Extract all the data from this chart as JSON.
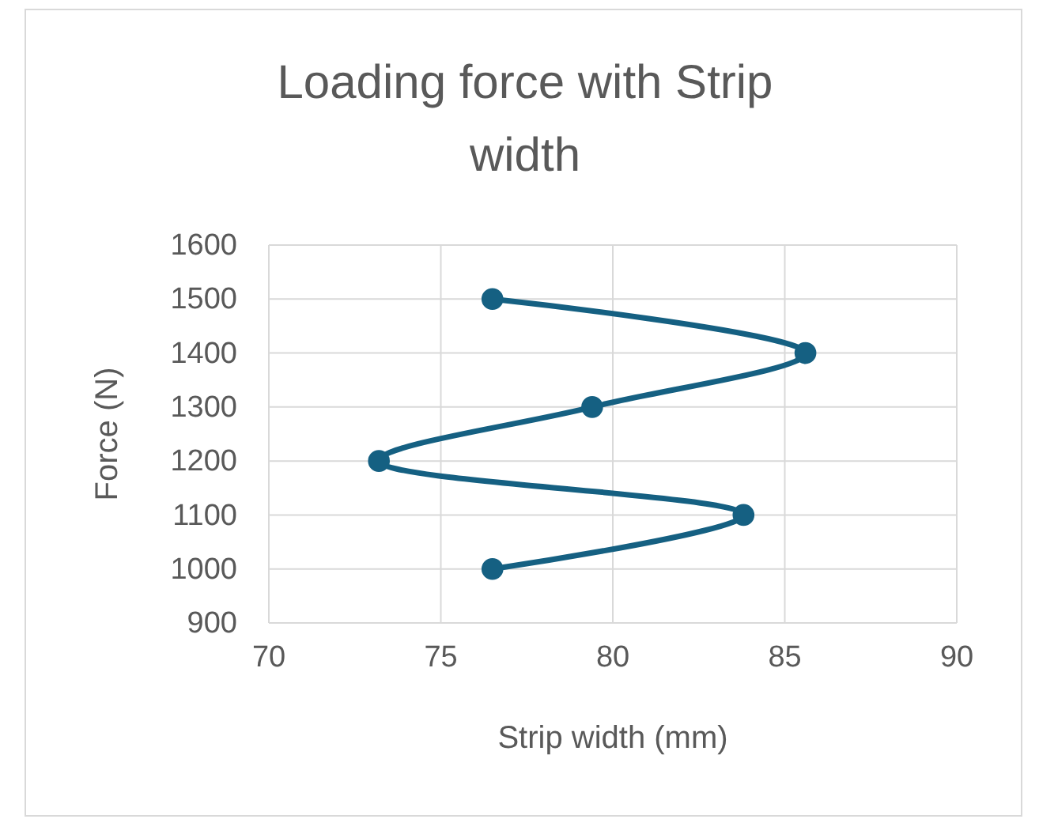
{
  "chart_data": {
    "type": "line",
    "title": "Loading force with Strip width",
    "xlabel": "Strip width (mm)",
    "ylabel": "Force (N)",
    "x": [
      76.5,
      83.8,
      73.2,
      79.4,
      85.6,
      76.5
    ],
    "series": [
      {
        "color": "#156082",
        "values": [
          1000,
          1100,
          1200,
          1300,
          1400,
          1500
        ]
      }
    ],
    "xlim": [
      70,
      90
    ],
    "xticks": [
      70,
      75,
      80,
      85,
      90
    ],
    "ylim": [
      900,
      1600
    ],
    "yticks": [
      900,
      1000,
      1100,
      1200,
      1300,
      1400,
      1500,
      1600
    ],
    "grid": true,
    "marker": "circle",
    "line_style": "solid"
  }
}
